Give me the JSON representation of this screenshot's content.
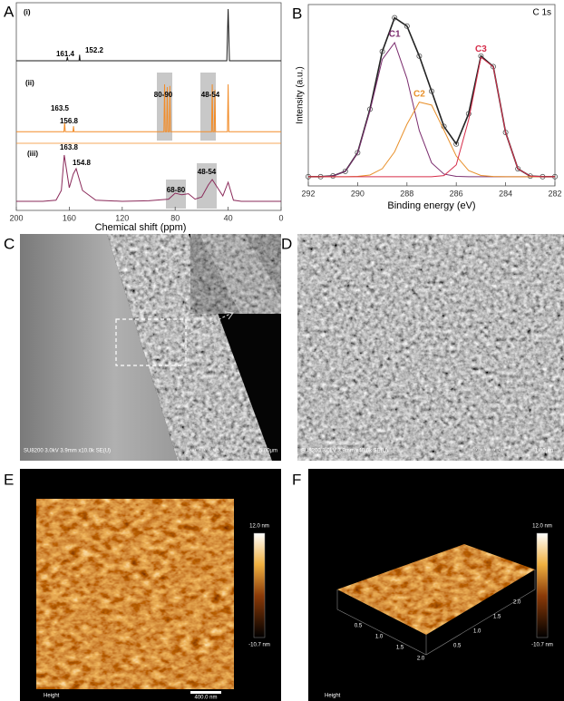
{
  "figure_labels": [
    "A",
    "B",
    "C",
    "D",
    "E",
    "F"
  ],
  "chart_data": [
    {
      "type": "line",
      "xlabel": "Chemical shift (ppm)",
      "xlim": [
        200,
        0
      ],
      "xticks": [
        200,
        160,
        120,
        80,
        40,
        0
      ],
      "ylim": [
        0,
        100
      ],
      "series": [
        {
          "name": "(i)",
          "color": "#1a1a1a",
          "x": [
            200,
            165,
            162,
            161.4,
            161,
            155,
            152.6,
            152.2,
            151.8,
            45,
            41,
            40,
            39,
            0
          ],
          "values": [
            5,
            5,
            5,
            12,
            5,
            5,
            5,
            16,
            5,
            5,
            5,
            100,
            5,
            5
          ],
          "annotations": [
            "161.4",
            "152.2"
          ]
        },
        {
          "name": "(ii)",
          "color": "#f28c28",
          "x": [
            200,
            166,
            164,
            163.5,
            163,
            158,
            157.2,
            156.8,
            156.4,
            90,
            88.5,
            88,
            87.5,
            86.5,
            86,
            85.5,
            84.5,
            84,
            83.5,
            82,
            55,
            52.5,
            52,
            51.5,
            50.5,
            50,
            49.5,
            42,
            40.5,
            40,
            39.5,
            0
          ],
          "values": [
            8,
            8,
            8,
            25,
            8,
            8,
            8,
            18,
            8,
            8,
            8,
            95,
            8,
            8,
            90,
            8,
            8,
            92,
            8,
            8,
            8,
            8,
            95,
            8,
            8,
            85,
            8,
            8,
            8,
            95,
            8,
            8
          ],
          "annotations": [
            "80-90",
            "48-54",
            "163.5",
            "156.8"
          ]
        },
        {
          "name": "(iii)",
          "color": "#8a2a5a",
          "x": [
            200,
            180,
            170,
            166,
            163.8,
            160,
            157,
            154.8,
            150,
            140,
            120,
            100,
            85,
            80,
            75,
            70,
            65,
            60,
            55,
            52,
            48,
            44,
            40,
            36,
            30,
            0
          ],
          "values": [
            10,
            10,
            12,
            30,
            95,
            35,
            60,
            70,
            30,
            12,
            10,
            11,
            14,
            25,
            22,
            24,
            14,
            18,
            40,
            50,
            35,
            20,
            45,
            12,
            10,
            10
          ],
          "annotations": [
            "163.8",
            "154.8",
            "68-80",
            "48-54"
          ]
        }
      ]
    },
    {
      "type": "line",
      "title": "C 1s",
      "xlabel": "Binding energy (eV)",
      "ylabel": "Intensity (a.u.)",
      "xlim": [
        292,
        282
      ],
      "xticks": [
        292,
        290,
        288,
        286,
        284,
        282
      ],
      "ylim": [
        -6,
        112
      ],
      "x": [
        292,
        291.5,
        291,
        290.5,
        290,
        289.5,
        289,
        288.5,
        288,
        287.5,
        287,
        286.5,
        286,
        285.5,
        285,
        284.5,
        284,
        283.5,
        283,
        282.5,
        282
      ],
      "series": [
        {
          "color": "#222222",
          "markers": true,
          "values": [
            0,
            0,
            0.5,
            3.5,
            15.6,
            43.9,
            81.5,
            103.4,
            98,
            78.5,
            55.6,
            32.7,
            21.3,
            40.9,
            78.5,
            71.6,
            28.8,
            5.1,
            0.4,
            0,
            0
          ]
        },
        {
          "name": "C1",
          "color": "#7b2d6e",
          "values": [
            0,
            0,
            0.5,
            3.5,
            15.4,
            42.8,
            76.3,
            87.2,
            63.9,
            30,
            9,
            1.7,
            0.2,
            0,
            0,
            0,
            0,
            0,
            0,
            0,
            0
          ]
        },
        {
          "name": "C2",
          "color": "#e8902a",
          "values": [
            0,
            0,
            0,
            0,
            0.2,
            1.1,
            5.2,
            16.2,
            34.1,
            48.5,
            46.6,
            30.3,
            13.4,
            4,
            0.8,
            0.1,
            0,
            0,
            0,
            0,
            0
          ]
        },
        {
          "name": "C3",
          "color": "#d62d4a",
          "values": [
            0,
            0,
            0,
            0,
            0,
            0,
            0,
            0,
            0,
            0,
            0,
            0.7,
            7.7,
            36.9,
            77.7,
            71.5,
            28.8,
            5.1,
            0.4,
            0,
            0
          ]
        }
      ]
    }
  ],
  "image_panels": [
    {
      "info": "SU8200 3.0kV 3.9mm x10.0k SE(U)",
      "scale_bar": "5.00μm"
    },
    {
      "info": "SU8200 3.0kV 3.9mm x40.0k SE(U)",
      "scale_bar": "1.00μm"
    },
    {
      "caption": "Height",
      "scale_bar": "400.0 nm",
      "colorbar": [
        "12.0 nm",
        "-10.7 nm"
      ]
    },
    {
      "caption": "Height",
      "colorbar": [
        "12.0 nm",
        "-10.7 nm"
      ],
      "x_ticks": [
        "0.5",
        "1.0",
        "1.5",
        "2.0"
      ],
      "y_ticks": [
        "0.5",
        "1.0",
        "1.5",
        "2.0"
      ]
    }
  ]
}
